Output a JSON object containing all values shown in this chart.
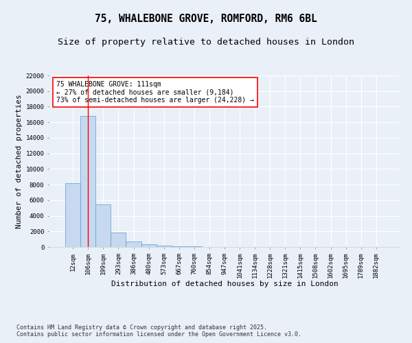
{
  "title_line1": "75, WHALEBONE GROVE, ROMFORD, RM6 6BL",
  "title_line2": "Size of property relative to detached houses in London",
  "xlabel": "Distribution of detached houses by size in London",
  "ylabel": "Number of detached properties",
  "bar_labels": [
    "12sqm",
    "106sqm",
    "199sqm",
    "293sqm",
    "386sqm",
    "480sqm",
    "573sqm",
    "667sqm",
    "760sqm",
    "854sqm",
    "947sqm",
    "1041sqm",
    "1134sqm",
    "1228sqm",
    "1321sqm",
    "1415sqm",
    "1508sqm",
    "1602sqm",
    "1695sqm",
    "1789sqm",
    "1882sqm"
  ],
  "bar_values": [
    8200,
    16800,
    5450,
    1850,
    700,
    380,
    200,
    130,
    80,
    30,
    10,
    5,
    3,
    2,
    1,
    1,
    1,
    1,
    0,
    0,
    0
  ],
  "bar_color": "#c6d9f0",
  "bar_edge_color": "#5b9bd5",
  "vline_x": 1,
  "vline_color": "red",
  "annotation_text": "75 WHALEBONE GROVE: 111sqm\n← 27% of detached houses are smaller (9,184)\n73% of semi-detached houses are larger (24,228) →",
  "annotation_box_color": "white",
  "annotation_box_edge": "red",
  "ylim": [
    0,
    22000
  ],
  "yticks": [
    0,
    2000,
    4000,
    6000,
    8000,
    10000,
    12000,
    14000,
    16000,
    18000,
    20000,
    22000
  ],
  "footer_line1": "Contains HM Land Registry data © Crown copyright and database right 2025.",
  "footer_line2": "Contains public sector information licensed under the Open Government Licence v3.0.",
  "bg_color": "#eaf0f8",
  "grid_color": "#ffffff",
  "title_fontsize": 10.5,
  "subtitle_fontsize": 9.5,
  "tick_fontsize": 6.5,
  "ylabel_fontsize": 8,
  "xlabel_fontsize": 8,
  "footer_fontsize": 6,
  "annotation_fontsize": 7
}
